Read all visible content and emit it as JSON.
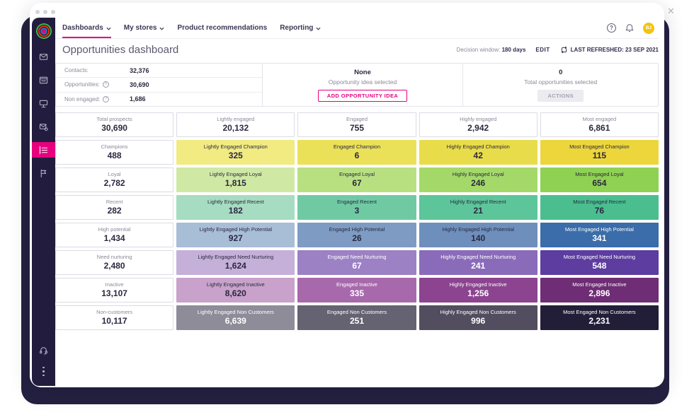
{
  "window": {
    "close": "✕"
  },
  "topnav": {
    "items": [
      {
        "label": "Dashboards",
        "chevron": true,
        "active": true
      },
      {
        "label": "My stores",
        "chevron": true,
        "active": false
      },
      {
        "label": "Product recommendations",
        "chevron": false,
        "active": false
      },
      {
        "label": "Reporting",
        "chevron": true,
        "active": false
      }
    ],
    "actions": {
      "help": "?",
      "icons": [
        "help-icon",
        "bell-icon"
      ],
      "avatar_initials": "BJ"
    }
  },
  "header": {
    "title": "Opportunities dashboard",
    "decision_window_label": "Decision window:",
    "decision_window_value": "180 days",
    "edit_label": "EDIT",
    "last_refreshed_label": "LAST REFRESHED: 23 SEP 2021"
  },
  "summary": {
    "stats": [
      {
        "label": "Contacts:",
        "value": "32,376",
        "help": false
      },
      {
        "label": "Opportunities:",
        "value": "30,690",
        "help": true
      },
      {
        "label": "Non engaged:",
        "value": "1,686",
        "help": true
      }
    ],
    "idea": {
      "value": "None",
      "caption": "Opportunity idea selected",
      "button_label": "ADD OPPORTUNITY IDEA"
    },
    "selection": {
      "value": "0",
      "caption": "Total opportunities selected",
      "button_label": "ACTIONS"
    }
  },
  "grid": {
    "header_row": [
      {
        "label": "Total prospects",
        "value": "30,690"
      },
      {
        "label": "Lightly engaged",
        "value": "20,132"
      },
      {
        "label": "Engaged",
        "value": "755"
      },
      {
        "label": "Highly engaged",
        "value": "2,942"
      },
      {
        "label": "Most engaged",
        "value": "6,861"
      }
    ],
    "rows": [
      {
        "label": "Champions",
        "value": "488",
        "cells": [
          {
            "label": "Lightly Engaged Champion",
            "value": "325",
            "bg": "#f1eb82",
            "text": "dark"
          },
          {
            "label": "Engaged Champion",
            "value": "6",
            "bg": "#eae159",
            "text": "dark"
          },
          {
            "label": "Highly Engaged Champion",
            "value": "42",
            "bg": "#e9dc4a",
            "text": "dark"
          },
          {
            "label": "Most Engaged Champion",
            "value": "115",
            "bg": "#ecd63c",
            "text": "dark"
          }
        ]
      },
      {
        "label": "Loyal",
        "value": "2,782",
        "cells": [
          {
            "label": "Lightly Engaged Loyal",
            "value": "1,815",
            "bg": "#cfe9a4",
            "text": "dark"
          },
          {
            "label": "Engaged Loyal",
            "value": "67",
            "bg": "#b8e081",
            "text": "dark"
          },
          {
            "label": "Highly Engaged Loyal",
            "value": "246",
            "bg": "#a4d969",
            "text": "dark"
          },
          {
            "label": "Most Engaged Loyal",
            "value": "654",
            "bg": "#8fd152",
            "text": "dark"
          }
        ]
      },
      {
        "label": "Recent",
        "value": "282",
        "cells": [
          {
            "label": "Lightly Engaged Recent",
            "value": "182",
            "bg": "#a6dcc1",
            "text": "dark"
          },
          {
            "label": "Engaged Recent",
            "value": "3",
            "bg": "#6fcaa4",
            "text": "dark"
          },
          {
            "label": "Highly Engaged Recent",
            "value": "21",
            "bg": "#5dc59a",
            "text": "dark"
          },
          {
            "label": "Most Engaged Recent",
            "value": "76",
            "bg": "#4abe8f",
            "text": "dark"
          }
        ]
      },
      {
        "label": "High potential",
        "value": "1,434",
        "cells": [
          {
            "label": "Lightly Engaged High Potential",
            "value": "927",
            "bg": "#a8bdd6",
            "text": "dark"
          },
          {
            "label": "Engaged High Potential",
            "value": "26",
            "bg": "#7e9cc3",
            "text": "dark"
          },
          {
            "label": "Highly Engaged High Potential",
            "value": "140",
            "bg": "#6e8fbc",
            "text": "dark"
          },
          {
            "label": "Most Engaged High Potential",
            "value": "341",
            "bg": "#3a6da9",
            "text": "light"
          }
        ]
      },
      {
        "label": "Need nurturing",
        "value": "2,480",
        "cells": [
          {
            "label": "Lightly Engaged Need Nurturing",
            "value": "1,624",
            "bg": "#c4b0d9",
            "text": "dark"
          },
          {
            "label": "Engaged Need Nurturing",
            "value": "67",
            "bg": "#9c81c5",
            "text": "light"
          },
          {
            "label": "Highly Engaged Need Nurturing",
            "value": "241",
            "bg": "#8a6bba",
            "text": "light"
          },
          {
            "label": "Most Engaged Need Nurturing",
            "value": "548",
            "bg": "#5d3da0",
            "text": "light"
          }
        ]
      },
      {
        "label": "Inactive",
        "value": "13,107",
        "cells": [
          {
            "label": "Lightly Engaged Inactive",
            "value": "8,620",
            "bg": "#c8a2ca",
            "text": "dark"
          },
          {
            "label": "Engaged Inactive",
            "value": "335",
            "bg": "#a769ac",
            "text": "light"
          },
          {
            "label": "Highly Engaged Inactive",
            "value": "1,256",
            "bg": "#8c4490",
            "text": "light"
          },
          {
            "label": "Most Engaged Inactive",
            "value": "2,896",
            "bg": "#6e2d74",
            "text": "light"
          }
        ]
      },
      {
        "label": "Non-customers",
        "value": "10,117",
        "cells": [
          {
            "label": "Lightly Engaged Non Customers",
            "value": "6,639",
            "bg": "#8f8c99",
            "text": "light"
          },
          {
            "label": "Engaged Non Customers",
            "value": "251",
            "bg": "#656271",
            "text": "light"
          },
          {
            "label": "Highly Engaged Non Customers",
            "value": "996",
            "bg": "#524e5f",
            "text": "light"
          },
          {
            "label": "Most Engaged Non Customers",
            "value": "2,231",
            "bg": "#221e38",
            "text": "light"
          }
        ]
      }
    ]
  },
  "sidebar": {
    "icons": [
      "envelope-icon",
      "browser-icon",
      "presentation-icon",
      "mail-settings-icon",
      "product-list-icon",
      "flag-icon"
    ],
    "active_icon": "product-list-icon",
    "footer_icons": [
      "headset-icon",
      "kebab-menu-icon"
    ]
  },
  "colors": {
    "accent_pink": "#e6007e",
    "sidebar_navy": "#221d3e",
    "frame_navy": "#232040",
    "avatar_yellow": "#f2c40f"
  }
}
